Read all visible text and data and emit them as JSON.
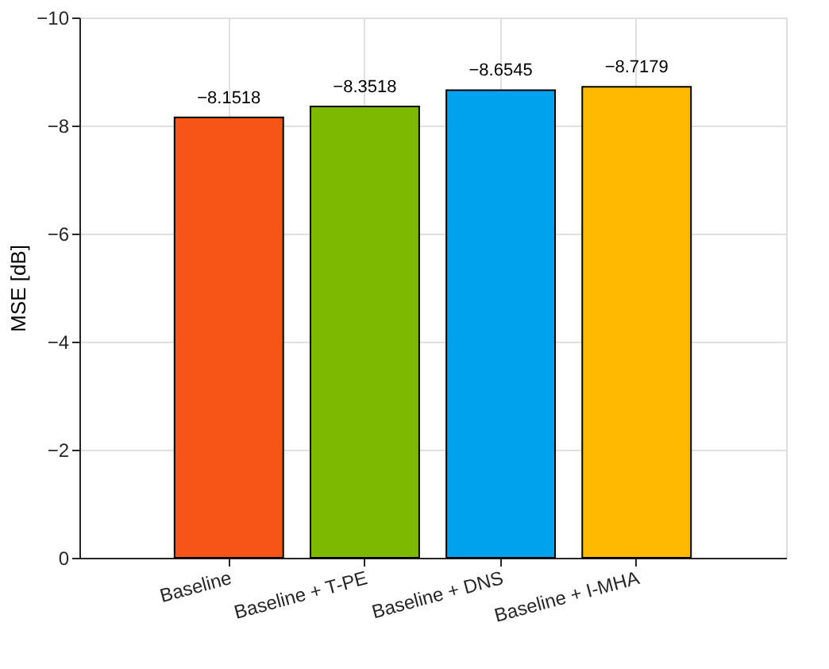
{
  "chart_data": {
    "type": "bar",
    "ylabel": "MSE [dB]",
    "categories": [
      "Baseline",
      "Baseline + T-PE",
      "Baseline + DNS",
      "Baseline + I-MHA"
    ],
    "values": [
      -8.1518,
      -8.3518,
      -8.6545,
      -8.7179
    ],
    "colors": [
      "#f75418",
      "#7db900",
      "#00a2ed",
      "#ffb900"
    ],
    "ylim": [
      0,
      -10
    ],
    "yticks": [
      0,
      -2,
      -4,
      -6,
      -8,
      -10
    ],
    "data_labels": true,
    "grid": true
  }
}
